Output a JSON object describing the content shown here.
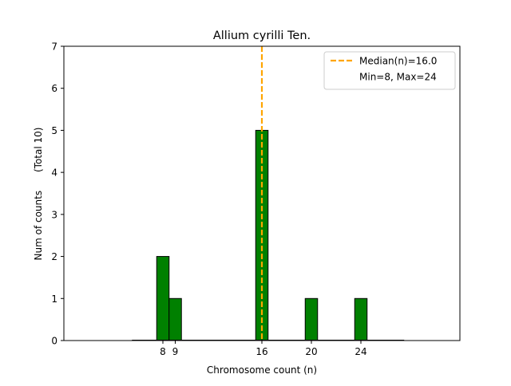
{
  "chart_data": {
    "type": "bar",
    "title": "Allium cyrilli Ten.",
    "xlabel": "Chromosome count (n)",
    "ylabel": "Num of counts      (Total 10)",
    "bar_width": 1,
    "bars": [
      {
        "x": 8,
        "value": 2
      },
      {
        "x": 9,
        "value": 1
      },
      {
        "x": 16,
        "value": 5
      },
      {
        "x": 20,
        "value": 1
      },
      {
        "x": 24,
        "value": 1
      }
    ],
    "x_ticks": [
      8,
      9,
      16,
      20,
      24
    ],
    "y_ticks": [
      0,
      1,
      2,
      3,
      4,
      5,
      6,
      7
    ],
    "xlim": [
      0,
      32
    ],
    "ylim": [
      0,
      7
    ],
    "baseline_extent": [
      5.5,
      27.5
    ],
    "median": 16.0,
    "grid": false,
    "legend": {
      "position": "top-right",
      "entries": [
        {
          "label": "Median(n)=16.0",
          "style": "dashed-line"
        },
        {
          "label": "Min=8, Max=24",
          "style": "none"
        }
      ]
    },
    "colors": {
      "bar_fill": "#008000",
      "bar_edge": "#000000",
      "median_line": "#FFA500",
      "axis": "#000000"
    }
  }
}
